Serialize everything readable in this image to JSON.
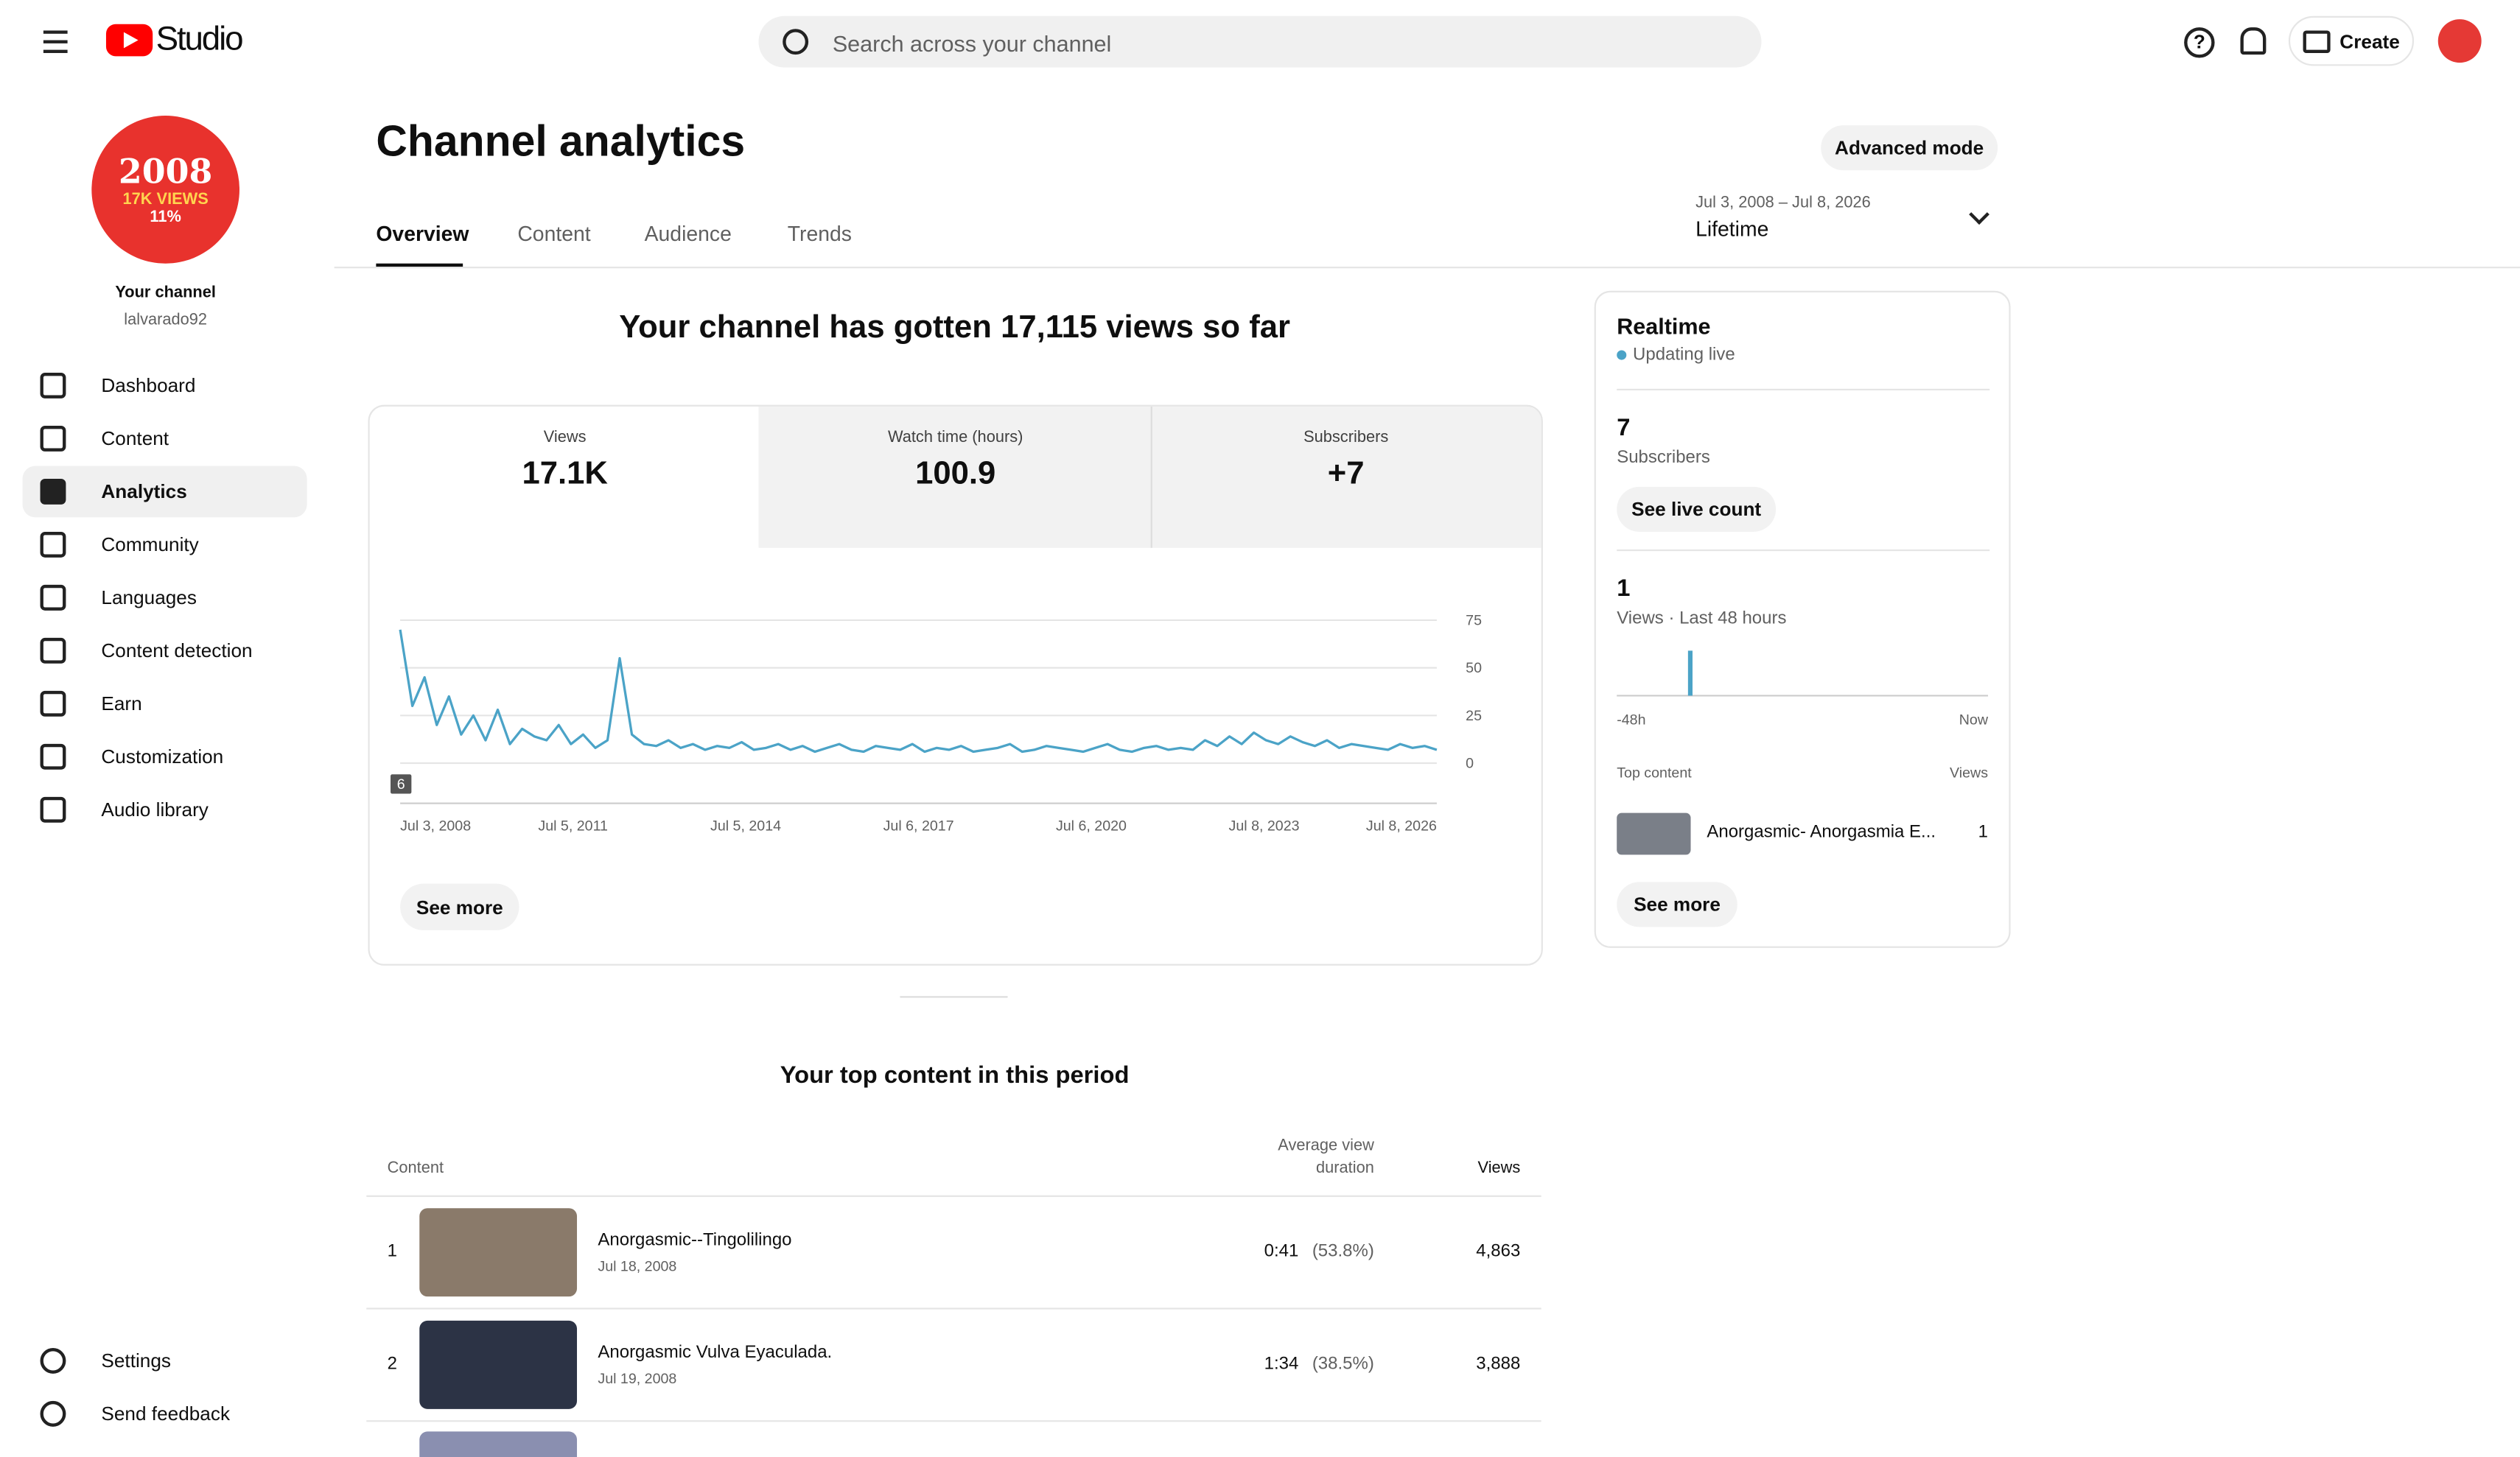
{
  "header": {
    "app": "Studio",
    "search_placeholder": "Search across your channel",
    "create": "Create"
  },
  "sidebar": {
    "avatar": [
      "2008",
      "17K VIEWS",
      "11%"
    ],
    "channel_title": "Your channel",
    "handle": "lalvarado92",
    "items": [
      "Dashboard",
      "Content",
      "Analytics",
      "Community",
      "Languages",
      "Content detection",
      "Earn",
      "Customization",
      "Audio library"
    ],
    "footer_items": [
      "Settings",
      "Send feedback"
    ]
  },
  "page": {
    "title": "Channel analytics",
    "advanced": "Advanced mode",
    "tabs": [
      "Overview",
      "Content",
      "Audience",
      "Trends"
    ],
    "date_range": "Jul 3, 2008 – Jul 8, 2026",
    "period": "Lifetime",
    "headline": "Your channel has gotten 17,115 views so far"
  },
  "metrics": [
    {
      "label": "Views",
      "value": "17.1K"
    },
    {
      "label": "Watch time (hours)",
      "value": "100.9"
    },
    {
      "label": "Subscribers",
      "value": "+7"
    }
  ],
  "chart_data": {
    "type": "line",
    "color": "#4ba3c7",
    "annotations": [
      "6"
    ],
    "xlim": [
      "Jul 3, 2008",
      "Jul 8, 2026"
    ],
    "xticks": [
      "Jul 3, 2008",
      "Jul 5, 2011",
      "Jul 5, 2014",
      "Jul 6, 2017",
      "Jul 6, 2020",
      "Jul 8, 2023",
      "Jul 8, 2026"
    ],
    "ylim": [
      0,
      75
    ],
    "yticks": [
      0,
      25,
      50,
      75
    ],
    "grid": true,
    "values": [
      70,
      30,
      45,
      20,
      35,
      15,
      25,
      12,
      28,
      10,
      18,
      14,
      12,
      20,
      10,
      15,
      8,
      12,
      55,
      15,
      10,
      9,
      12,
      8,
      10,
      7,
      9,
      8,
      11,
      7,
      8,
      10,
      7,
      9,
      6,
      8,
      10,
      7,
      6,
      9,
      8,
      7,
      10,
      6,
      8,
      7,
      9,
      6,
      7,
      8,
      10,
      6,
      7,
      9,
      8,
      7,
      6,
      8,
      10,
      7,
      6,
      8,
      9,
      7,
      8,
      7,
      12,
      9,
      14,
      10,
      16,
      12,
      10,
      14,
      11,
      9,
      12,
      8,
      10,
      9,
      8,
      7,
      10,
      8,
      9,
      7
    ]
  },
  "see_more": "See more",
  "top_content": {
    "title": "Your top content in this period",
    "columns": [
      "Content",
      "Average view duration",
      "Views"
    ],
    "rows": [
      {
        "rank": 1,
        "title": "Anorgasmic--Tingolilingo",
        "date": "Jul 18, 2008",
        "duration": "0:41",
        "percent": "(53.8%)",
        "views": "4,863"
      },
      {
        "rank": 2,
        "title": "Anorgasmic Vulva Eyaculada.",
        "date": "Jul 19, 2008",
        "duration": "1:34",
        "percent": "(38.5%)",
        "views": "3,888"
      }
    ]
  },
  "realtime": {
    "title": "Realtime",
    "status": "Updating live",
    "subscribers": 7,
    "subscribers_label": "Subscribers",
    "live_count": "See live count",
    "views": 1,
    "views_label": "Views · Last 48 hours",
    "axis_start": "-48h",
    "axis_end": "Now",
    "hourly_views": [
      0,
      0,
      0,
      0,
      0,
      0,
      0,
      0,
      0,
      1,
      0,
      0,
      0,
      0,
      0,
      0,
      0,
      0,
      0,
      0,
      0,
      0,
      0,
      0,
      0,
      0,
      0,
      0,
      0,
      0,
      0,
      0,
      0,
      0,
      0,
      0,
      0,
      0,
      0,
      0,
      0,
      0,
      0,
      0,
      0,
      0,
      0,
      0
    ],
    "top_label": "Top content",
    "top_views_label": "Views",
    "top_title": "Anorgasmic- Anorgasmia E...",
    "top_views": 1,
    "see_more": "See more"
  }
}
